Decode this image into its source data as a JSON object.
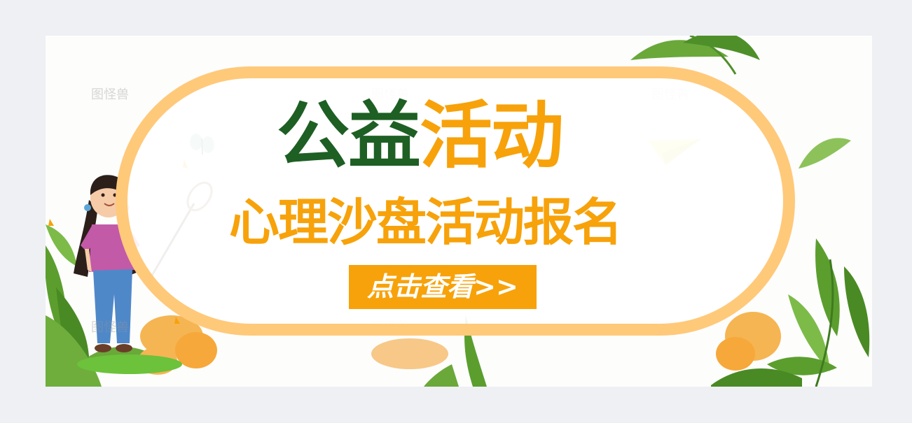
{
  "banner": {
    "title_part1": "公益",
    "title_part2": "活动",
    "subtitle": "心理沙盘活动报名",
    "cta_label": "点击查看>>"
  },
  "watermark": {
    "text": "图怪兽"
  },
  "colors": {
    "title_green": "#1e5f24",
    "accent_orange": "#f7a20a",
    "pill_border": "#ffc97a",
    "leaf_green": "#5b9e2e",
    "page_bg": "#eef0f4"
  }
}
